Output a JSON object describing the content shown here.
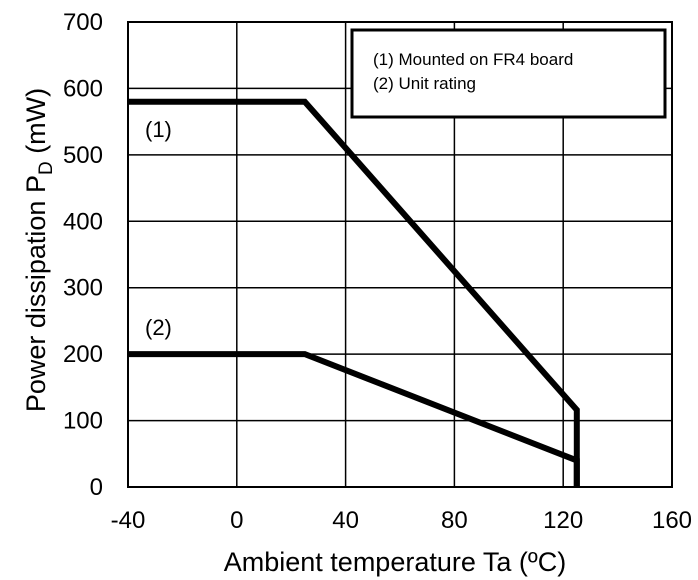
{
  "chart_data": {
    "type": "line",
    "xlabel": "Ambient temperature Ta (ºC)",
    "ylabel_main": "Power dissipation P",
    "ylabel_sub": "D",
    "ylabel_unit": " (mW)",
    "xlim": [
      -40,
      160
    ],
    "ylim": [
      0,
      700
    ],
    "xticks": [
      -40,
      0,
      40,
      80,
      120,
      160
    ],
    "yticks": [
      0,
      100,
      200,
      300,
      400,
      500,
      600,
      700
    ],
    "grid": true,
    "legend_position": "top-right",
    "legend": [
      "(1) Mounted on FR4 board",
      "(2) Unit rating"
    ],
    "line_color": "#000000",
    "series": [
      {
        "name": "(1)",
        "x": [
          -40,
          25,
          125,
          125
        ],
        "y": [
          580,
          580,
          116,
          0
        ]
      },
      {
        "name": "(2)",
        "x": [
          -40,
          25,
          125,
          125
        ],
        "y": [
          200,
          200,
          40,
          0
        ]
      }
    ]
  }
}
